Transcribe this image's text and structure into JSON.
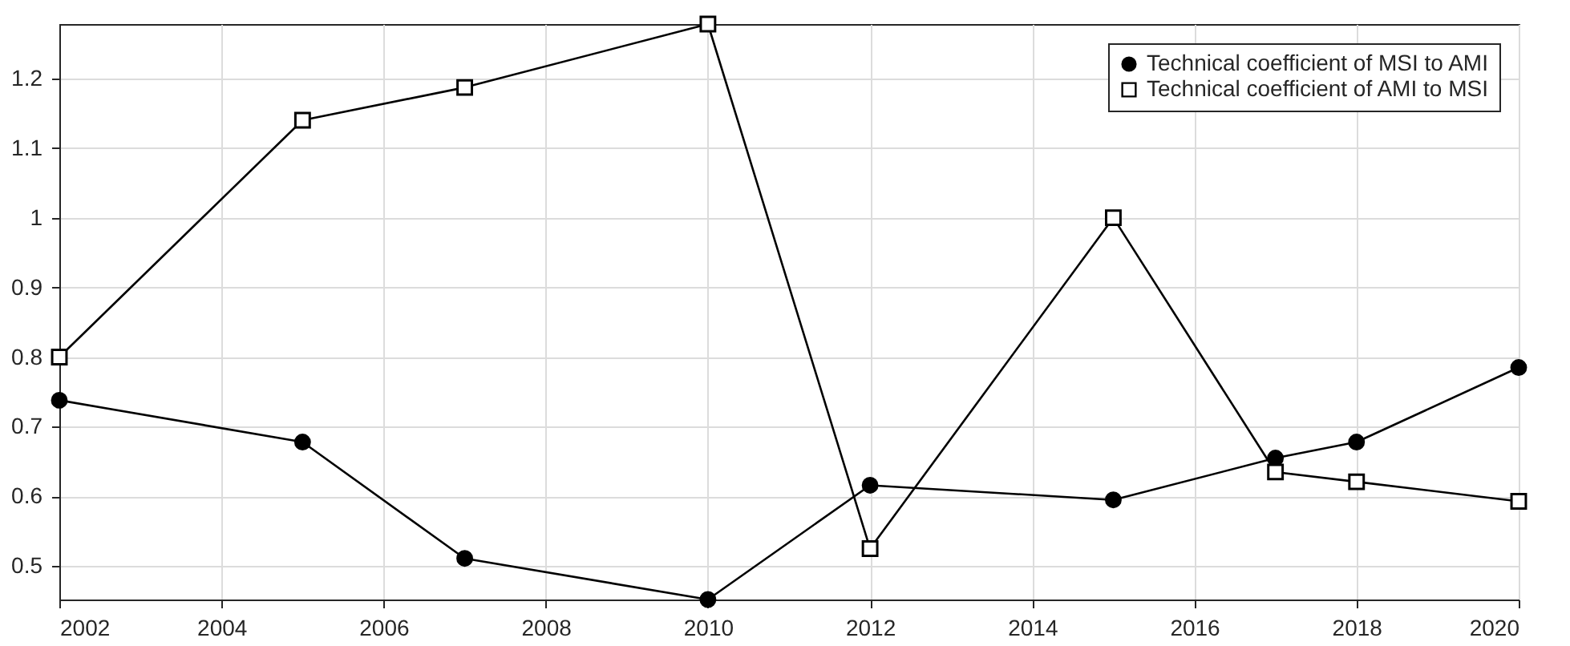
{
  "chart_data": {
    "type": "line",
    "x": [
      2002,
      2005,
      2007,
      2010,
      2012,
      2015,
      2017,
      2018,
      2020
    ],
    "series": [
      {
        "name": "Technical coefficient of MSI to AMI",
        "color": "#000000",
        "marker": "circle",
        "values": [
          0.738,
          0.678,
          0.511,
          0.452,
          0.616,
          0.595,
          0.655,
          0.678,
          0.785
        ]
      },
      {
        "name": "Technical coefficient of AMI to MSI",
        "color": "#000000",
        "marker": "square",
        "values": [
          0.8,
          1.14,
          1.187,
          1.278,
          0.525,
          1.0,
          0.635,
          0.621,
          0.593
        ]
      }
    ],
    "xlim": [
      2002,
      2020
    ],
    "xticks": [
      2002,
      2004,
      2006,
      2008,
      2010,
      2012,
      2014,
      2016,
      2018,
      2020
    ],
    "ylim": [
      0.452,
      1.278
    ],
    "yticks": [
      0.5,
      0.6,
      0.7,
      0.8,
      0.9,
      1,
      1.1,
      1.2
    ],
    "grid": true,
    "legend": "top right",
    "line_style": "solid"
  }
}
